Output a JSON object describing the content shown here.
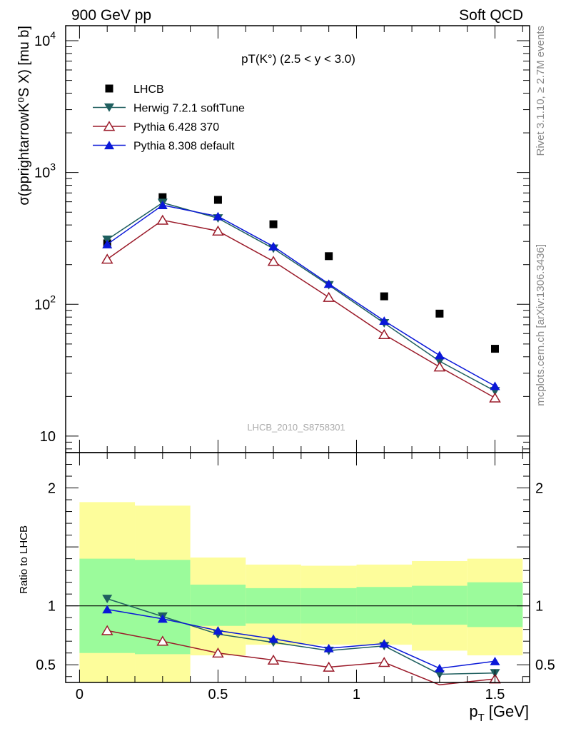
{
  "header": {
    "left": "900 GeV pp",
    "right": "Soft QCD"
  },
  "side_labels": {
    "top": "Rivet 3.1.10, ≥ 2.7M events",
    "bottom": "mcplots.cern.ch [arXiv:1306.3436]"
  },
  "watermark": "LHCB_2010_S8758301",
  "colors": {
    "lhcb": "#000000",
    "herwig": "#1f5f5f",
    "pythia6": "#9b1b2a",
    "pythia8": "#0a18d8",
    "band_inner": "#9bfb9b",
    "band_outer": "#fdfd9b"
  },
  "chart_data": [
    {
      "type": "scatter",
      "panel": "main",
      "title": "pT(K°) (2.5 < y < 3.0)",
      "ylabel": "σ(pprightarrowK⁰S X) [mu b]",
      "yscale": "log",
      "ylim": [
        7.5,
        13000
      ],
      "xlim": [
        -0.05,
        1.625
      ],
      "x": [
        0.1,
        0.3,
        0.5,
        0.7,
        0.9,
        1.1,
        1.3,
        1.5
      ],
      "y_ticks": [
        {
          "value": 10,
          "base": "10",
          "exp": ""
        },
        {
          "value": 100,
          "base": "10",
          "exp": "2"
        },
        {
          "value": 1000,
          "base": "10",
          "exp": "3"
        },
        {
          "value": 10000,
          "base": "10",
          "exp": "4"
        }
      ],
      "legend_position": "top-left",
      "series": [
        {
          "name": "LHCB",
          "key": "lhcb",
          "marker": "square",
          "values": [
            290,
            650,
            620,
            405,
            232,
            115,
            85,
            46
          ]
        },
        {
          "name": "Herwig 7.2.1 softTune",
          "key": "herwig",
          "marker": "triangle-down",
          "values": [
            310,
            590,
            450,
            265,
            140,
            72,
            37,
            22
          ]
        },
        {
          "name": "Pythia 6.428 370",
          "key": "pythia6",
          "marker": "triangle-up-open",
          "values": [
            220,
            435,
            360,
            212,
            113,
            59,
            33.5,
            19.5
          ]
        },
        {
          "name": "Pythia 8.308 default",
          "key": "pythia8",
          "marker": "triangle-up",
          "values": [
            285,
            565,
            465,
            275,
            143,
            75,
            41,
            24
          ]
        }
      ]
    },
    {
      "type": "line",
      "panel": "ratio",
      "ylabel": "Ratio to LHCB",
      "xlabel": "p_T [GeV]",
      "xlabel_main": "p",
      "xlabel_sub": "T",
      "xlabel_unit": "[GeV]",
      "ylim": [
        0.35,
        2.3
      ],
      "xlim": [
        -0.05,
        1.625
      ],
      "x_ticks": [
        {
          "value": 0,
          "label": "0"
        },
        {
          "value": 0.5,
          "label": "0.5"
        },
        {
          "value": 1,
          "label": "1"
        },
        {
          "value": 1.5,
          "label": "1.5"
        }
      ],
      "y_ticks": [
        {
          "value": 0.5,
          "label": "0.5"
        },
        {
          "value": 1,
          "label": "1"
        },
        {
          "value": 2,
          "label": "2"
        }
      ],
      "bins": [
        [
          0,
          0.2
        ],
        [
          0.2,
          0.4
        ],
        [
          0.4,
          0.6
        ],
        [
          0.6,
          0.8
        ],
        [
          0.8,
          1.0
        ],
        [
          1.0,
          1.2
        ],
        [
          1.2,
          1.4
        ],
        [
          1.4,
          1.6
        ]
      ],
      "band_inner": [
        [
          0.6,
          1.4
        ],
        [
          0.59,
          1.39
        ],
        [
          0.83,
          1.18
        ],
        [
          0.85,
          1.15
        ],
        [
          0.85,
          1.15
        ],
        [
          0.85,
          1.16
        ],
        [
          0.84,
          1.17
        ],
        [
          0.82,
          1.2
        ]
      ],
      "band_outer": [
        [
          0.3,
          1.88
        ],
        [
          0.3,
          1.85
        ],
        [
          0.58,
          1.41
        ],
        [
          0.67,
          1.35
        ],
        [
          0.67,
          1.34
        ],
        [
          0.67,
          1.35
        ],
        [
          0.62,
          1.38
        ],
        [
          0.58,
          1.4
        ]
      ],
      "reference": 1,
      "x": [
        0.1,
        0.3,
        0.5,
        0.7,
        0.9,
        1.1,
        1.3,
        1.5
      ],
      "series": [
        {
          "name": "Herwig 7.2.1 softTune",
          "key": "herwig",
          "marker": "triangle-down",
          "values": [
            1.06,
            0.91,
            0.76,
            0.69,
            0.62,
            0.66,
            0.42,
            0.43
          ]
        },
        {
          "name": "Pythia 6.428 370",
          "key": "pythia6",
          "marker": "triangle-up-open",
          "values": [
            0.79,
            0.7,
            0.6,
            0.54,
            0.48,
            0.52,
            0.33,
            0.38
          ]
        },
        {
          "name": "Pythia 8.308 default",
          "key": "pythia8",
          "marker": "triangle-up",
          "values": [
            0.97,
            0.89,
            0.79,
            0.72,
            0.64,
            0.68,
            0.47,
            0.53
          ]
        }
      ]
    }
  ]
}
